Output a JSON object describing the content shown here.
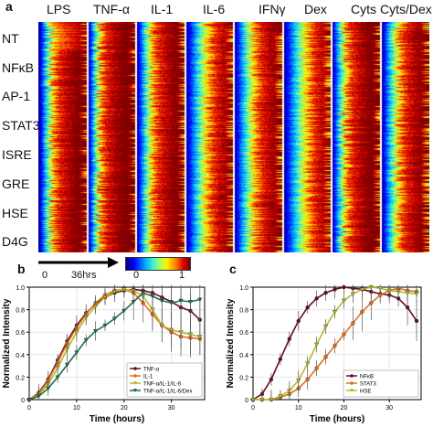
{
  "panels": {
    "a": "a",
    "b": "b",
    "c": "c"
  },
  "chart_data": [
    {
      "type": "heatmap",
      "panel": "a",
      "columns": [
        "LPS",
        "TNF-α",
        "IL-1",
        "IL-6",
        "IFNγ",
        "Dex",
        "Cyts",
        "Cyts/Dex"
      ],
      "rows": [
        "NT",
        "NFκB",
        "AP-1",
        "STAT3",
        "ISRE",
        "GRE",
        "HSE",
        "D4G"
      ],
      "time_axis": {
        "start_label": "0",
        "end_label": "36hrs"
      },
      "colorscale": {
        "min_label": "0",
        "max_label": "1",
        "colors": [
          "#00008f",
          "#0040ff",
          "#00c0ff",
          "#60ffa0",
          "#ffff00",
          "#ff8000",
          "#e00000",
          "#800000"
        ]
      },
      "pattern_note": ""
    },
    {
      "type": "line",
      "panel": "b",
      "xlabel": "Time (hours)",
      "ylabel": "Normalized Intensity",
      "xlim": [
        0,
        37
      ],
      "ylim": [
        0,
        1.0
      ],
      "xticks": [
        0,
        10,
        20,
        30
      ],
      "yticks": [
        0,
        0.2,
        0.4,
        0.6,
        0.8,
        1.0
      ],
      "ytick_labels": [
        "0",
        "0.2",
        "0.4",
        "0.6",
        "0.8",
        "1.0"
      ],
      "legend_position": "bottom-right",
      "series": [
        {
          "name": "TNF-α",
          "color": "#6b0a1e",
          "marker": "circle",
          "x": [
            0,
            2,
            4,
            6,
            8,
            10,
            12,
            14,
            16,
            18,
            20,
            22,
            24,
            26,
            28,
            30,
            32,
            34,
            36
          ],
          "y": [
            0,
            0.06,
            0.18,
            0.35,
            0.52,
            0.66,
            0.77,
            0.85,
            0.91,
            0.95,
            0.97,
            0.98,
            0.97,
            0.95,
            0.91,
            0.87,
            0.82,
            0.79,
            0.71
          ]
        },
        {
          "name": "IL-1",
          "color": "#e0701e",
          "marker": "circle",
          "x": [
            0,
            2,
            4,
            6,
            8,
            10,
            12,
            14,
            16,
            18,
            20,
            22,
            24,
            26,
            28,
            30,
            32,
            34,
            36
          ],
          "y": [
            0,
            0.05,
            0.17,
            0.33,
            0.5,
            0.64,
            0.76,
            0.86,
            0.93,
            0.97,
            0.98,
            0.95,
            0.86,
            0.76,
            0.66,
            0.6,
            0.56,
            0.55,
            0.54
          ]
        },
        {
          "name": "TNF-α/IL-1/IL-6",
          "color": "#b8b82a",
          "marker": "triangle",
          "x": [
            0,
            2,
            4,
            6,
            8,
            10,
            12,
            14,
            16,
            18,
            20,
            22,
            24,
            26,
            28,
            30,
            32,
            34,
            36
          ],
          "y": [
            0,
            0.04,
            0.14,
            0.28,
            0.45,
            0.6,
            0.73,
            0.83,
            0.91,
            0.96,
            0.98,
            0.97,
            0.92,
            0.8,
            0.66,
            0.62,
            0.6,
            0.58,
            0.56
          ]
        },
        {
          "name": "TNF-α/IL-1/IL-6/Dex",
          "color": "#1e6e46",
          "marker": "triangle",
          "x": [
            0,
            2,
            4,
            6,
            8,
            10,
            12,
            14,
            16,
            18,
            20,
            22,
            24,
            26,
            28,
            30,
            32,
            34,
            36
          ],
          "y": [
            0,
            0.03,
            0.1,
            0.2,
            0.31,
            0.42,
            0.53,
            0.61,
            0.66,
            0.72,
            0.79,
            0.87,
            0.95,
            0.92,
            0.88,
            0.86,
            0.88,
            0.87,
            0.89
          ]
        }
      ]
    },
    {
      "type": "line",
      "panel": "c",
      "xlabel": "Time (hours)",
      "ylabel": "Normalized Intensity",
      "xlim": [
        0,
        37
      ],
      "ylim": [
        0,
        1.0
      ],
      "xticks": [
        0,
        10,
        20,
        30
      ],
      "yticks": [
        0,
        0.2,
        0.4,
        0.6,
        0.8,
        1.0
      ],
      "ytick_labels": [
        "0",
        "0.2",
        "0.4",
        "0.6",
        "0.8",
        "1.0"
      ],
      "legend_position": "bottom-right",
      "series": [
        {
          "name": "NFκB",
          "color": "#6b0a1e",
          "marker": "circle",
          "x": [
            0,
            2,
            4,
            6,
            8,
            10,
            12,
            14,
            16,
            18,
            20,
            22,
            24,
            26,
            28,
            30,
            32,
            34,
            36
          ],
          "y": [
            0,
            0.05,
            0.18,
            0.36,
            0.54,
            0.7,
            0.82,
            0.9,
            0.95,
            0.98,
            1.0,
            0.99,
            0.98,
            0.96,
            0.94,
            0.93,
            0.9,
            0.82,
            0.7
          ]
        },
        {
          "name": "STAT3",
          "color": "#e0701e",
          "marker": "circle",
          "x": [
            0,
            2,
            4,
            6,
            8,
            10,
            12,
            14,
            16,
            18,
            20,
            22,
            24,
            26,
            28,
            30,
            32,
            34,
            36
          ],
          "y": [
            0,
            0,
            0,
            0.02,
            0.05,
            0.1,
            0.18,
            0.28,
            0.38,
            0.48,
            0.58,
            0.68,
            0.78,
            0.86,
            0.93,
            0.97,
            0.99,
            0.97,
            0.96
          ]
        },
        {
          "name": "HSE",
          "color": "#b8b82a",
          "marker": "triangle",
          "x": [
            0,
            2,
            4,
            6,
            8,
            10,
            12,
            14,
            16,
            18,
            20,
            22,
            24,
            26,
            28,
            30,
            32,
            34,
            36
          ],
          "y": [
            0,
            0,
            0,
            0.03,
            0.08,
            0.17,
            0.32,
            0.49,
            0.65,
            0.78,
            0.88,
            0.94,
            0.98,
            1.0,
            0.99,
            0.97,
            0.96,
            0.95,
            0.94
          ]
        }
      ]
    }
  ]
}
